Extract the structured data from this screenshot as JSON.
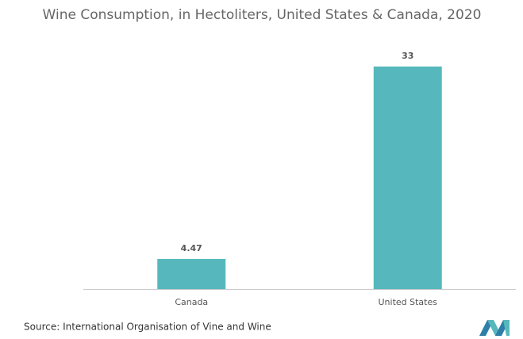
{
  "chart_data": {
    "type": "bar",
    "title": "Wine Consumption, in Hectoliters, United States & Canada, 2020",
    "categories": [
      "Canada",
      "United States"
    ],
    "values": [
      4.47,
      33
    ],
    "color": "#56b8bc",
    "source": "Source: International Organisation of Vine and Wine"
  }
}
